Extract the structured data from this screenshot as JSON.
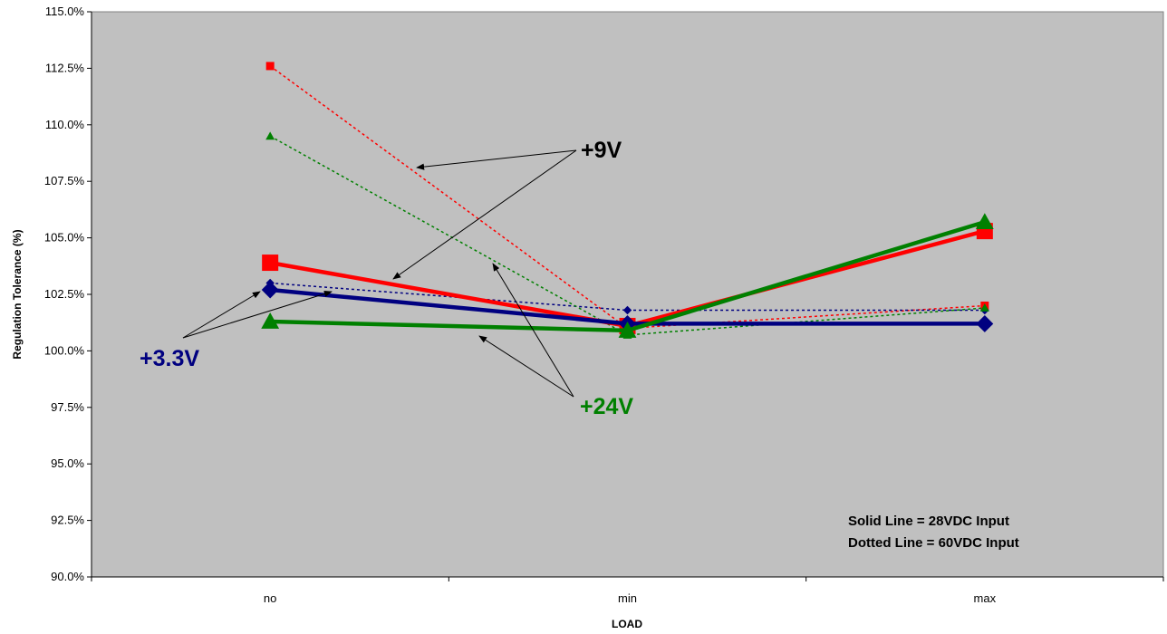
{
  "chart_data": {
    "type": "line",
    "title": "",
    "xlabel": "LOAD",
    "ylabel": "Regulation Tolerance (%)",
    "categories": [
      "no",
      "min",
      "max"
    ],
    "ylim": [
      90.0,
      115.0
    ],
    "y_ticks": [
      "90.0%",
      "92.5%",
      "95.0%",
      "97.5%",
      "100.0%",
      "102.5%",
      "105.0%",
      "107.5%",
      "110.0%",
      "112.5%",
      "115.0%"
    ],
    "grid": false,
    "plot_background": "#c0c0c0",
    "series": [
      {
        "key": "red-solid",
        "color": "#ff0000",
        "style": "solid",
        "marker": "square",
        "values": [
          103.9,
          101.1,
          105.3
        ]
      },
      {
        "key": "blue-solid",
        "color": "#000080",
        "style": "solid",
        "marker": "diamond",
        "values": [
          102.7,
          101.2,
          101.2
        ]
      },
      {
        "key": "green-solid",
        "color": "#008000",
        "style": "solid",
        "marker": "triangle",
        "values": [
          101.3,
          100.9,
          105.7
        ]
      },
      {
        "key": "red-dotted",
        "color": "#ff0000",
        "style": "dotted",
        "marker": "square",
        "values": [
          112.6,
          101.0,
          102.0
        ]
      },
      {
        "key": "blue-dotted",
        "color": "#000080",
        "style": "dotted",
        "marker": "diamond",
        "values": [
          103.0,
          101.8,
          101.8
        ]
      },
      {
        "key": "green-dotted",
        "color": "#008000",
        "style": "dotted",
        "marker": "triangle",
        "values": [
          109.5,
          100.7,
          101.9
        ]
      }
    ],
    "annotations": [
      {
        "key": "v9",
        "text": "+9V",
        "color": "#000000"
      },
      {
        "key": "v33",
        "text": "+3.3V",
        "color": "#000080"
      },
      {
        "key": "v24",
        "text": "+24V",
        "color": "#008000"
      }
    ],
    "notes": [
      "Solid Line = 28VDC Input",
      "Dotted Line = 60VDC Input"
    ]
  }
}
